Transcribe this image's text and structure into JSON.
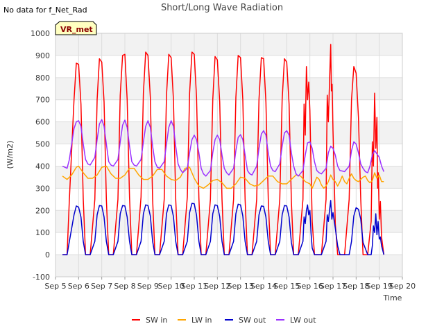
{
  "chart_data": {
    "type": "line",
    "title": "Short/Long Wave Radiation",
    "note": "No data for f_Net_Rad",
    "badge": "VR_met",
    "xlabel": "Time",
    "ylabel": "(W/m2)",
    "ylim": [
      -100,
      1000
    ],
    "xlim": [
      0,
      15
    ],
    "yticks": [
      -100,
      0,
      100,
      200,
      300,
      400,
      500,
      600,
      700,
      800,
      900,
      1000
    ],
    "xtick_labels": [
      "Sep 5",
      "Sep 6",
      "Sep 7",
      "Sep 8",
      "Sep 9",
      "Sep 10",
      "Sep 11",
      "Sep 12",
      "Sep 13",
      "Sep 14",
      "Sep 15",
      "Sep 16",
      "Sep 17",
      "Sep 18",
      "Sep 19",
      "Sep 20"
    ],
    "grid": true,
    "legend_position": "bottom",
    "series": [
      {
        "name": "SW in",
        "color": "#ff0000",
        "x": [
          0.3,
          0.5,
          0.6,
          0.8,
          0.9,
          1.0,
          1.1,
          1.2,
          1.3,
          1.5,
          1.7,
          1.8,
          1.9,
          2.0,
          2.1,
          2.2,
          2.3,
          2.5,
          2.7,
          2.8,
          2.9,
          3.0,
          3.1,
          3.2,
          3.3,
          3.5,
          3.7,
          3.8,
          3.9,
          4.0,
          4.1,
          4.2,
          4.3,
          4.5,
          4.7,
          4.8,
          4.9,
          5.0,
          5.1,
          5.2,
          5.3,
          5.5,
          5.7,
          5.8,
          5.9,
          6.0,
          6.1,
          6.2,
          6.3,
          6.5,
          6.7,
          6.8,
          6.9,
          7.0,
          7.1,
          7.2,
          7.3,
          7.5,
          7.7,
          7.8,
          7.9,
          8.0,
          8.1,
          8.2,
          8.3,
          8.5,
          8.7,
          8.8,
          8.9,
          9.0,
          9.1,
          9.2,
          9.3,
          9.5,
          9.7,
          9.8,
          9.9,
          10.0,
          10.1,
          10.2,
          10.3,
          10.5,
          10.7,
          10.75,
          10.8,
          10.85,
          10.9,
          10.95,
          11.0,
          11.05,
          11.1,
          11.2,
          11.3,
          11.5,
          11.7,
          11.75,
          11.8,
          11.85,
          11.9,
          11.93,
          11.96,
          12.0,
          12.05,
          12.1,
          12.2,
          12.3,
          12.5,
          12.7,
          12.8,
          12.9,
          13.0,
          13.1,
          13.2,
          13.3,
          13.5,
          13.65,
          13.7,
          13.75,
          13.8,
          13.85,
          13.9,
          13.93,
          13.96,
          14.0,
          14.05,
          14.1,
          14.2
        ],
        "y": [
          0,
          0,
          250,
          700,
          865,
          860,
          680,
          250,
          0,
          0,
          250,
          700,
          885,
          870,
          690,
          250,
          0,
          0,
          250,
          720,
          900,
          905,
          700,
          260,
          0,
          0,
          260,
          730,
          915,
          900,
          710,
          250,
          0,
          0,
          250,
          720,
          905,
          890,
          700,
          250,
          0,
          0,
          260,
          730,
          915,
          905,
          710,
          255,
          0,
          0,
          250,
          700,
          895,
          880,
          690,
          250,
          0,
          0,
          250,
          710,
          900,
          890,
          700,
          250,
          0,
          0,
          250,
          700,
          890,
          885,
          690,
          250,
          0,
          0,
          250,
          700,
          885,
          870,
          680,
          240,
          0,
          0,
          250,
          680,
          540,
          850,
          700,
          780,
          650,
          400,
          150,
          0,
          0,
          0,
          250,
          720,
          600,
          780,
          950,
          740,
          770,
          560,
          350,
          140,
          0,
          0,
          0,
          250,
          700,
          850,
          820,
          620,
          250,
          0,
          0,
          150,
          510,
          400,
          730,
          480,
          620,
          300,
          370,
          160,
          240,
          80,
          0
        ]
      },
      {
        "name": "LW in",
        "color": "#ffa500",
        "x": [
          0.3,
          0.5,
          0.7,
          0.9,
          1.0,
          1.2,
          1.4,
          1.6,
          1.8,
          2.0,
          2.2,
          2.4,
          2.6,
          2.8,
          3.0,
          3.2,
          3.4,
          3.6,
          3.8,
          4.0,
          4.2,
          4.4,
          4.6,
          4.8,
          5.0,
          5.2,
          5.4,
          5.6,
          5.8,
          6.0,
          6.2,
          6.4,
          6.6,
          6.8,
          7.0,
          7.2,
          7.4,
          7.6,
          7.8,
          8.0,
          8.2,
          8.4,
          8.6,
          8.8,
          9.0,
          9.2,
          9.4,
          9.6,
          9.8,
          10.0,
          10.2,
          10.4,
          10.6,
          10.8,
          11.0,
          11.1,
          11.2,
          11.3,
          11.4,
          11.5,
          11.6,
          11.7,
          11.8,
          11.9,
          12.0,
          12.1,
          12.2,
          12.3,
          12.4,
          12.5,
          12.6,
          12.7,
          12.8,
          12.9,
          13.0,
          13.1,
          13.2,
          13.3,
          13.4,
          13.5,
          13.6,
          13.7,
          13.8,
          13.9,
          14.0,
          14.1,
          14.2
        ],
        "y": [
          355,
          340,
          360,
          395,
          400,
          370,
          345,
          345,
          360,
          395,
          400,
          365,
          345,
          345,
          360,
          390,
          390,
          360,
          340,
          340,
          355,
          385,
          385,
          355,
          340,
          335,
          350,
          390,
          395,
          345,
          310,
          300,
          315,
          335,
          340,
          325,
          300,
          300,
          320,
          350,
          345,
          320,
          310,
          315,
          335,
          355,
          355,
          330,
          320,
          320,
          340,
          360,
          355,
          330,
          320,
          300,
          325,
          350,
          340,
          315,
          300,
          310,
          330,
          360,
          340,
          330,
          310,
          330,
          355,
          330,
          320,
          345,
          365,
          345,
          335,
          330,
          340,
          350,
          355,
          335,
          325,
          335,
          370,
          345,
          360,
          330,
          330
        ]
      },
      {
        "name": "SW out",
        "color": "#0000cd",
        "x": [
          0.3,
          0.5,
          0.6,
          0.8,
          0.9,
          1.0,
          1.1,
          1.2,
          1.3,
          1.5,
          1.7,
          1.8,
          1.9,
          2.0,
          2.1,
          2.2,
          2.3,
          2.5,
          2.7,
          2.8,
          2.9,
          3.0,
          3.1,
          3.2,
          3.3,
          3.5,
          3.7,
          3.8,
          3.9,
          4.0,
          4.1,
          4.2,
          4.3,
          4.5,
          4.7,
          4.8,
          4.9,
          5.0,
          5.1,
          5.2,
          5.3,
          5.5,
          5.7,
          5.8,
          5.9,
          6.0,
          6.1,
          6.2,
          6.3,
          6.5,
          6.7,
          6.8,
          6.9,
          7.0,
          7.1,
          7.2,
          7.3,
          7.5,
          7.7,
          7.8,
          7.9,
          8.0,
          8.1,
          8.2,
          8.3,
          8.5,
          8.7,
          8.8,
          8.9,
          9.0,
          9.1,
          9.2,
          9.3,
          9.5,
          9.7,
          9.8,
          9.9,
          10.0,
          10.1,
          10.2,
          10.3,
          10.5,
          10.7,
          10.75,
          10.8,
          10.85,
          10.9,
          10.95,
          11.0,
          11.05,
          11.1,
          11.2,
          11.3,
          11.5,
          11.7,
          11.75,
          11.8,
          11.85,
          11.9,
          11.95,
          12.0,
          12.1,
          12.2,
          12.3,
          12.5,
          12.7,
          12.8,
          12.9,
          13.0,
          13.1,
          13.2,
          13.3,
          13.5,
          13.65,
          13.7,
          13.75,
          13.8,
          13.85,
          13.9,
          13.95,
          14.0,
          14.05,
          14.1,
          14.2
        ],
        "y": [
          0,
          0,
          60,
          180,
          220,
          215,
          170,
          60,
          0,
          0,
          60,
          180,
          222,
          220,
          170,
          60,
          0,
          0,
          60,
          185,
          222,
          220,
          170,
          60,
          0,
          0,
          60,
          185,
          225,
          222,
          175,
          60,
          0,
          0,
          60,
          185,
          225,
          222,
          172,
          60,
          0,
          0,
          60,
          190,
          232,
          230,
          178,
          60,
          0,
          0,
          60,
          185,
          225,
          222,
          172,
          60,
          0,
          0,
          60,
          185,
          228,
          225,
          175,
          60,
          0,
          0,
          60,
          180,
          220,
          218,
          170,
          60,
          0,
          0,
          60,
          180,
          222,
          220,
          170,
          55,
          0,
          0,
          60,
          170,
          140,
          200,
          225,
          180,
          200,
          100,
          30,
          0,
          0,
          0,
          60,
          180,
          150,
          200,
          245,
          160,
          190,
          120,
          40,
          0,
          0,
          0,
          60,
          175,
          212,
          205,
          160,
          55,
          0,
          0,
          40,
          130,
          100,
          185,
          90,
          150,
          70,
          80,
          40,
          0
        ]
      },
      {
        "name": "LW out",
        "color": "#9b30ff",
        "x": [
          0.3,
          0.5,
          0.6,
          0.7,
          0.8,
          0.9,
          1.0,
          1.1,
          1.2,
          1.3,
          1.4,
          1.5,
          1.7,
          1.8,
          1.9,
          2.0,
          2.1,
          2.2,
          2.3,
          2.4,
          2.5,
          2.7,
          2.8,
          2.9,
          3.0,
          3.1,
          3.2,
          3.3,
          3.4,
          3.5,
          3.7,
          3.8,
          3.9,
          4.0,
          4.1,
          4.2,
          4.3,
          4.4,
          4.5,
          4.7,
          4.8,
          4.9,
          5.0,
          5.1,
          5.2,
          5.3,
          5.4,
          5.5,
          5.7,
          5.8,
          5.9,
          6.0,
          6.1,
          6.2,
          6.3,
          6.4,
          6.5,
          6.7,
          6.8,
          6.9,
          7.0,
          7.1,
          7.2,
          7.3,
          7.4,
          7.5,
          7.7,
          7.8,
          7.9,
          8.0,
          8.1,
          8.2,
          8.3,
          8.4,
          8.5,
          8.7,
          8.8,
          8.9,
          9.0,
          9.1,
          9.2,
          9.3,
          9.4,
          9.5,
          9.7,
          9.8,
          9.9,
          10.0,
          10.1,
          10.2,
          10.3,
          10.4,
          10.5,
          10.7,
          10.8,
          10.9,
          11.0,
          11.1,
          11.2,
          11.3,
          11.4,
          11.5,
          11.7,
          11.8,
          11.9,
          12.0,
          12.1,
          12.2,
          12.3,
          12.4,
          12.5,
          12.7,
          12.8,
          12.9,
          13.0,
          13.1,
          13.2,
          13.3,
          13.4,
          13.5,
          13.6,
          13.7,
          13.8,
          13.9,
          14.0,
          14.1,
          14.2
        ],
        "y": [
          400,
          390,
          430,
          500,
          570,
          600,
          605,
          580,
          500,
          430,
          410,
          405,
          440,
          520,
          590,
          610,
          580,
          500,
          420,
          405,
          400,
          430,
          510,
          585,
          608,
          575,
          490,
          420,
          405,
          400,
          430,
          510,
          580,
          605,
          575,
          490,
          420,
          395,
          390,
          420,
          500,
          575,
          605,
          580,
          490,
          410,
          385,
          370,
          390,
          460,
          520,
          540,
          520,
          460,
          390,
          365,
          355,
          380,
          460,
          520,
          540,
          520,
          450,
          390,
          370,
          360,
          390,
          470,
          530,
          542,
          520,
          450,
          380,
          365,
          360,
          400,
          480,
          545,
          560,
          540,
          460,
          400,
          380,
          375,
          410,
          490,
          550,
          560,
          540,
          460,
          400,
          365,
          355,
          380,
          450,
          505,
          510,
          480,
          420,
          380,
          370,
          365,
          390,
          460,
          490,
          480,
          450,
          400,
          380,
          378,
          375,
          400,
          470,
          510,
          500,
          460,
          410,
          390,
          375,
          370,
          400,
          450,
          470,
          455,
          440,
          400,
          375
        ]
      }
    ]
  }
}
